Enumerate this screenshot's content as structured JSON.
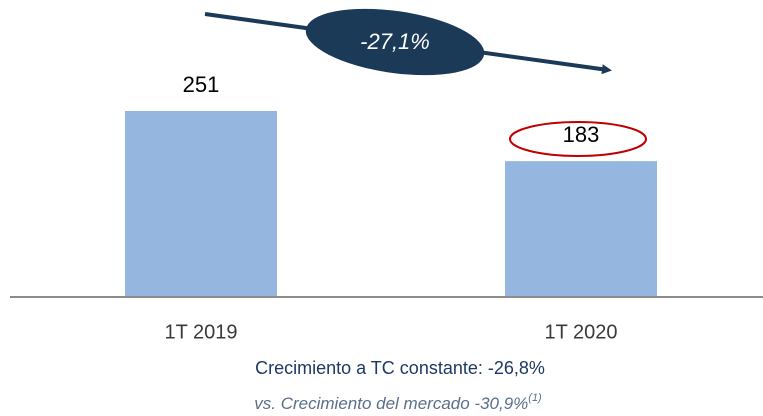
{
  "chart_data": {
    "type": "bar",
    "categories": [
      "1T 2019",
      "1T 2020"
    ],
    "values": [
      251,
      183
    ],
    "color": "#95b7df",
    "annotations": {
      "change": "-27,1%",
      "constant_growth": "Crecimiento a TC constante: -26,8%",
      "market_growth": "vs. Crecimiento del mercado -30,9%",
      "footnote": "(1)"
    }
  }
}
